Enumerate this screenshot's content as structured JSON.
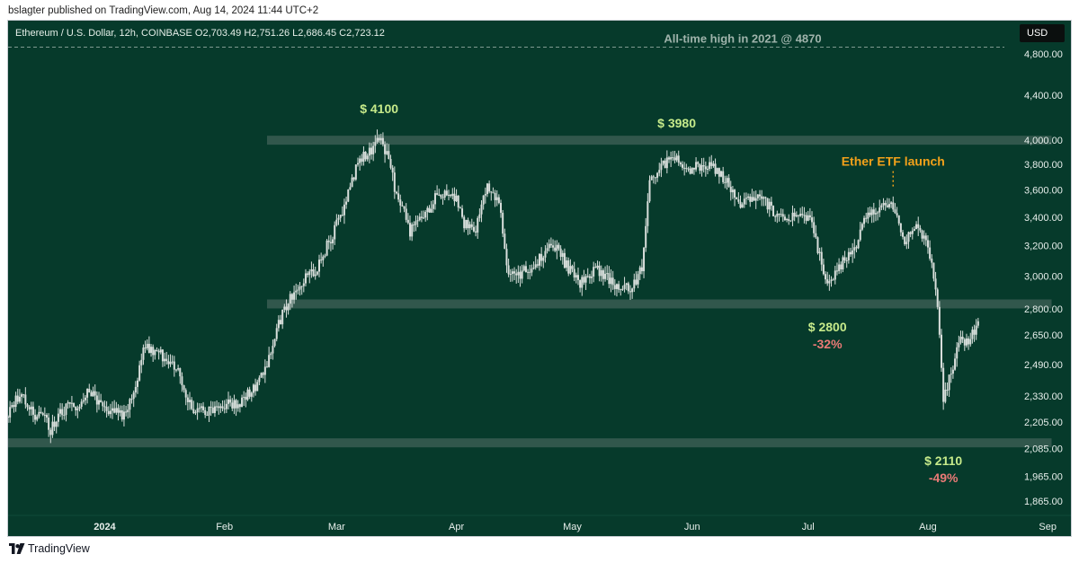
{
  "publisher_line": "bslagter published on TradingView.com, Aug 14, 2024 11:44 UTC+2",
  "symbol_line": "Ethereum / U.S. Dollar, 12h, COINBASE  O2,703.49  H2,751.26  L2,686.45  C2,723.12",
  "currency_button": "USD",
  "footer_logo_text": "TradingView",
  "colors": {
    "background": "#063a2b",
    "candles": "#d9dfdc",
    "zone_band": "#3a5d52",
    "label_green": "#c6ea8a",
    "label_red": "#ea7a76",
    "etf_orange": "#f2a11a",
    "ath_text": "#9fb3ab",
    "axis_text": "#e8efec"
  },
  "chart_data": {
    "type": "candlestick",
    "symbol": "Ethereum / U.S. Dollar",
    "interval": "12h",
    "exchange": "COINBASE",
    "scale": "log",
    "ohlc_last": {
      "open": 2703.49,
      "high": 2751.26,
      "low": 2686.45,
      "close": 2723.12
    },
    "y_ticks": [
      4800,
      4400,
      4000,
      3800,
      3600,
      3400,
      3200,
      3000,
      2800,
      2650,
      2490,
      2330,
      2205,
      2085,
      1965,
      1865
    ],
    "y_tick_labels": [
      "4,800.00",
      "4,400.00",
      "4,000.00",
      "3,800.00",
      "3,600.00",
      "3,400.00",
      "3,200.00",
      "3,000.00",
      "2,800.00",
      "2,650.00",
      "2,490.00",
      "2,330.00",
      "2,205.00",
      "2,085.00",
      "1,965.00",
      "1,865.00"
    ],
    "ylim": [
      1810,
      5150
    ],
    "x_range": [
      "2023-12-07",
      "2024-09-07"
    ],
    "x_ticks": [
      {
        "date": "2024-01-01",
        "label": "2024"
      },
      {
        "date": "2024-02-01",
        "label": "Feb"
      },
      {
        "date": "2024-03-01",
        "label": "Mar"
      },
      {
        "date": "2024-04-01",
        "label": "Apr"
      },
      {
        "date": "2024-05-01",
        "label": "May"
      },
      {
        "date": "2024-06-01",
        "label": "Jun"
      },
      {
        "date": "2024-07-01",
        "label": "Jul"
      },
      {
        "date": "2024-08-01",
        "label": "Aug"
      },
      {
        "date": "2024-09-01",
        "label": "Sep"
      }
    ],
    "price_path": [
      [
        "2023-12-07",
        2230
      ],
      [
        "2023-12-10",
        2340
      ],
      [
        "2023-12-13",
        2250
      ],
      [
        "2023-12-16",
        2230
      ],
      [
        "2023-12-18",
        2170
      ],
      [
        "2023-12-22",
        2280
      ],
      [
        "2023-12-25",
        2290
      ],
      [
        "2023-12-28",
        2350
      ],
      [
        "2023-12-30",
        2300
      ],
      [
        "2024-01-03",
        2250
      ],
      [
        "2024-01-06",
        2230
      ],
      [
        "2024-01-09",
        2350
      ],
      [
        "2024-01-11",
        2600
      ],
      [
        "2024-01-13",
        2560
      ],
      [
        "2024-01-17",
        2530
      ],
      [
        "2024-01-20",
        2470
      ],
      [
        "2024-01-22",
        2350
      ],
      [
        "2024-01-24",
        2240
      ],
      [
        "2024-01-27",
        2260
      ],
      [
        "2024-02-01",
        2290
      ],
      [
        "2024-02-05",
        2300
      ],
      [
        "2024-02-09",
        2380
      ],
      [
        "2024-02-12",
        2480
      ],
      [
        "2024-02-15",
        2720
      ],
      [
        "2024-02-20",
        2950
      ],
      [
        "2024-02-25",
        3050
      ],
      [
        "2024-03-02",
        3400
      ],
      [
        "2024-03-07",
        3850
      ],
      [
        "2024-03-10",
        3920
      ],
      [
        "2024-03-12",
        4000
      ],
      [
        "2024-03-14",
        3900
      ],
      [
        "2024-03-16",
        3620
      ],
      [
        "2024-03-20",
        3300
      ],
      [
        "2024-03-23",
        3380
      ],
      [
        "2024-03-27",
        3570
      ],
      [
        "2024-03-31",
        3600
      ],
      [
        "2024-04-03",
        3350
      ],
      [
        "2024-04-06",
        3330
      ],
      [
        "2024-04-09",
        3620
      ],
      [
        "2024-04-12",
        3500
      ],
      [
        "2024-04-14",
        3060
      ],
      [
        "2024-04-17",
        3000
      ],
      [
        "2024-04-22",
        3100
      ],
      [
        "2024-04-26",
        3220
      ],
      [
        "2024-04-30",
        3050
      ],
      [
        "2024-05-03",
        2950
      ],
      [
        "2024-05-07",
        3040
      ],
      [
        "2024-05-12",
        2950
      ],
      [
        "2024-05-16",
        2920
      ],
      [
        "2024-05-19",
        3050
      ],
      [
        "2024-05-21",
        3700
      ],
      [
        "2024-05-24",
        3780
      ],
      [
        "2024-05-27",
        3880
      ],
      [
        "2024-05-30",
        3760
      ],
      [
        "2024-06-05",
        3800
      ],
      [
        "2024-06-09",
        3700
      ],
      [
        "2024-06-13",
        3500
      ],
      [
        "2024-06-17",
        3550
      ],
      [
        "2024-06-20",
        3500
      ],
      [
        "2024-06-24",
        3380
      ],
      [
        "2024-06-28",
        3400
      ],
      [
        "2024-07-02",
        3380
      ],
      [
        "2024-07-05",
        3000
      ],
      [
        "2024-07-07",
        2950
      ],
      [
        "2024-07-10",
        3100
      ],
      [
        "2024-07-13",
        3180
      ],
      [
        "2024-07-16",
        3400
      ],
      [
        "2024-07-20",
        3500
      ],
      [
        "2024-07-23",
        3480
      ],
      [
        "2024-07-26",
        3250
      ],
      [
        "2024-07-29",
        3330
      ],
      [
        "2024-08-01",
        3200
      ],
      [
        "2024-08-03",
        2950
      ],
      [
        "2024-08-05",
        2300
      ],
      [
        "2024-08-07",
        2450
      ],
      [
        "2024-08-09",
        2620
      ],
      [
        "2024-08-11",
        2600
      ],
      [
        "2024-08-14",
        2723
      ]
    ],
    "horizontal_zones": [
      {
        "price": 4000,
        "from": "2024-02-12",
        "to": "2024-09-02"
      },
      {
        "price": 2830,
        "from": "2024-02-12",
        "to": "2024-09-02"
      },
      {
        "price": 2110,
        "from": "2023-12-07",
        "to": "2024-09-02"
      }
    ],
    "reference_line": {
      "price": 4870,
      "style": "dashed",
      "label": "All-time high in 2021 @ 4870"
    },
    "annotations": [
      {
        "text": "$ 4100",
        "date": "2024-03-12",
        "price": 4100,
        "kind": "green",
        "offset": "above"
      },
      {
        "text": "$ 3980",
        "date": "2024-05-28",
        "price": 3980,
        "kind": "green",
        "offset": "above"
      },
      {
        "text": "$ 2800",
        "date": "2024-07-06",
        "price": 2800,
        "kind": "green",
        "offset": "below"
      },
      {
        "text": "-32%",
        "date": "2024-07-06",
        "price": 2800,
        "kind": "red",
        "offset": "below2"
      },
      {
        "text": "$ 2110",
        "date": "2024-08-05",
        "price": 2110,
        "kind": "green",
        "offset": "below"
      },
      {
        "text": "-49%",
        "date": "2024-08-05",
        "price": 2110,
        "kind": "red",
        "offset": "below2"
      },
      {
        "text": "Ether ETF launch",
        "date": "2024-07-23",
        "price": 3600,
        "kind": "orange",
        "offset": "etf"
      }
    ]
  }
}
